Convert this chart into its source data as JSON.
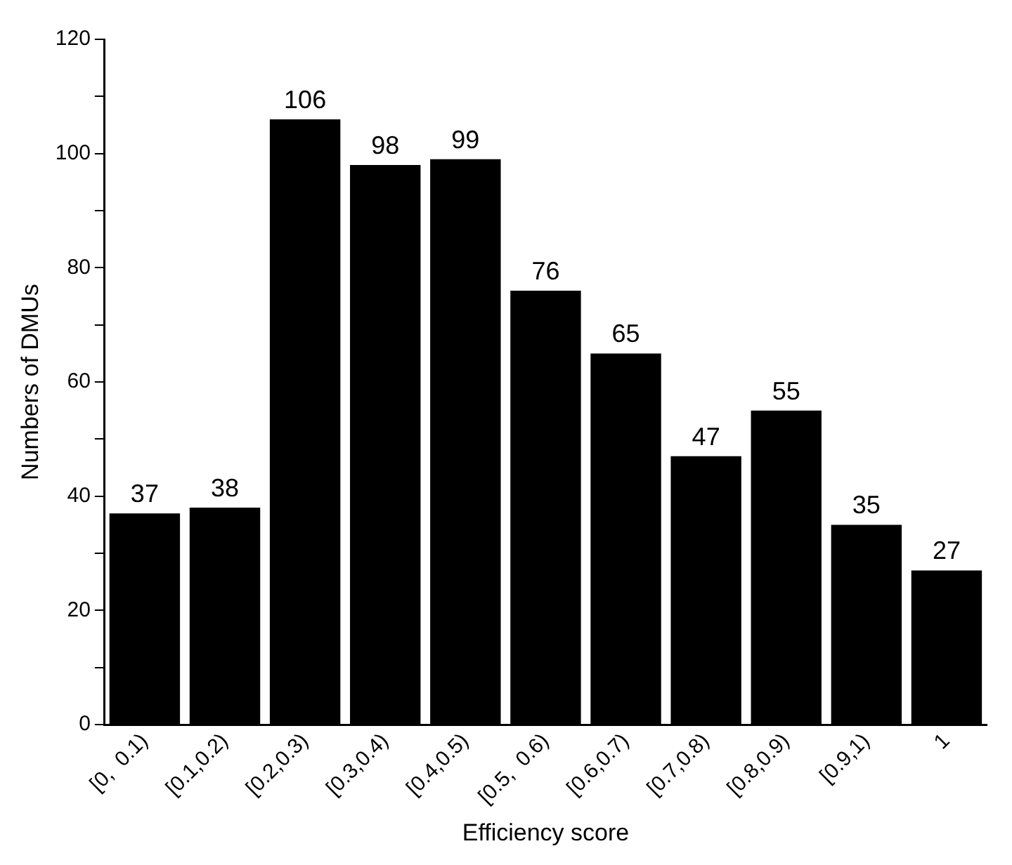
{
  "chart_data": {
    "type": "bar",
    "xlabel": "Efficiency score",
    "ylabel": "Numbers of DMUs",
    "categories": [
      "[0,  0.1)",
      "[0.1,0.2)",
      "[0.2,0.3)",
      "[0.3,0.4)",
      "[0.4,0.5)",
      "[0.5,  0.6)",
      "[0.6,0.7)",
      "[0.7,0.8)",
      "[0.8,0.9)",
      "[0.9,1)",
      "1"
    ],
    "values": [
      37,
      38,
      106,
      98,
      99,
      76,
      65,
      47,
      55,
      35,
      27
    ],
    "color": "#000000",
    "ylim": [
      0,
      120
    ],
    "yticks": [
      0,
      {
        "value": 10,
        "label": null
      },
      20,
      {
        "value": 30,
        "label": null
      },
      40,
      {
        "value": 50,
        "label": null
      },
      60,
      {
        "value": 70,
        "label": null
      },
      80,
      {
        "value": 90,
        "label": null
      },
      100,
      {
        "value": 110,
        "label": null
      },
      120
    ],
    "grid": false,
    "legend": false,
    "data_labels": true
  }
}
